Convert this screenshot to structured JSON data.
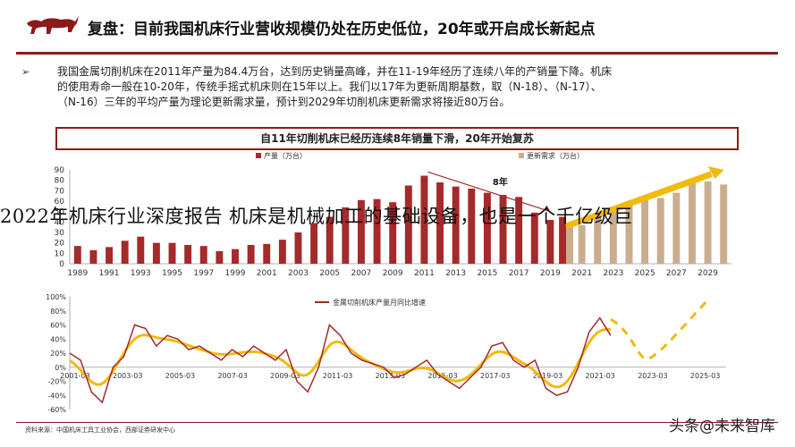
{
  "header": {
    "title": "复盘：目前我国机床行业营收规模仍处在历史低位，20年或开启成长新起点"
  },
  "bullet": {
    "lines": [
      "我国金属切削机床在2011年产量为84.4万台，达到历史销量高峰，并在11-19年经历了连续八年的产销量下降。机床",
      "的使用寿命一般在10-20年，传统手摇式机床则在15年以上。我们以17年为更新周期基数，取（N-18）、（N-17）、",
      "（N-16）三年的平均产量为理论更新需求量，预计到2029年切削机床更新需求将接近80万台。"
    ]
  },
  "overlay_text": "2022年机床行业深度报告 机床是机械加工的基础设备，也是一个千亿级巨",
  "source_text": "资料来源：中国机床工具工业协会，西部证券研发中心",
  "watermark_text": "头条@未来智库",
  "colors": {
    "accent": "#8b1a1a",
    "bar1": "#a52a2a",
    "bar2": "#c9ad8c",
    "yellow": "#f2b90f"
  },
  "chart_data": [
    {
      "type": "bar",
      "title": "自11年切削机床已经历连续8年销量下滑，20年开始复苏",
      "ylim": [
        0,
        90
      ],
      "yticks": [
        0,
        10,
        20,
        30,
        40,
        50,
        60,
        70,
        80,
        90
      ],
      "x_tick_labels": [
        "1989",
        "1991",
        "1993",
        "1995",
        "1997",
        "1999",
        "2001",
        "2003",
        "2005",
        "2007",
        "2009",
        "2011",
        "2013",
        "2015",
        "2017",
        "2019",
        "2021",
        "2023",
        "2025",
        "2027",
        "2029"
      ],
      "x_start": 1989,
      "series": [
        {
          "name": "产量（万台）",
          "years": [
            1989,
            1990,
            1991,
            1992,
            1993,
            1994,
            1995,
            1996,
            1997,
            1998,
            1999,
            2000,
            2001,
            2002,
            2003,
            2004,
            2005,
            2006,
            2007,
            2008,
            2009,
            2010,
            2011,
            2012,
            2013,
            2014,
            2015,
            2016,
            2017,
            2018,
            2019,
            2020
          ],
          "values": [
            17,
            13,
            16,
            22,
            26,
            20,
            20,
            18,
            17,
            12,
            14,
            18,
            19,
            23,
            30,
            39,
            45,
            54,
            61,
            62,
            59,
            75,
            84.4,
            78,
            74,
            72,
            68,
            66,
            64,
            49,
            42,
            45
          ]
        },
        {
          "name": "更新需求（万台）",
          "years": [
            2020,
            2021,
            2022,
            2023,
            2024,
            2025,
            2026,
            2027,
            2028,
            2029,
            2030
          ],
          "values": [
            35,
            37,
            45,
            53,
            58,
            61,
            63,
            68,
            78,
            79,
            76
          ]
        }
      ],
      "annotation": {
        "text": "8年",
        "from_year": 2011,
        "to_year": 2019
      }
    },
    {
      "type": "line",
      "y_tick_labels": [
        "100%",
        "80%",
        "60%",
        "40%",
        "20%",
        "0%",
        "-20%",
        "-40%",
        "-60%"
      ],
      "ylim": [
        -60,
        100
      ],
      "x_tick_labels": [
        "2001-03",
        "2003-03",
        "2005-03",
        "2007-03",
        "2009-03",
        "2011-03",
        "2013-03",
        "2015-03",
        "2017-03",
        "2019-03",
        "2021-03",
        "2023-03",
        "2025-03"
      ],
      "series": [
        {
          "name": "金属切削机床产量月同比增速",
          "values": [
            20,
            10,
            -35,
            -50,
            0,
            15,
            60,
            55,
            30,
            45,
            40,
            25,
            30,
            20,
            10,
            25,
            15,
            30,
            20,
            10,
            25,
            -20,
            -35,
            0,
            60,
            45,
            20,
            10,
            5,
            0,
            -15,
            -10,
            0,
            10,
            -10,
            -20,
            -30,
            -15,
            0,
            30,
            35,
            10,
            0,
            10,
            -30,
            -40,
            -35,
            0,
            50,
            70,
            45
          ]
        }
      ]
    }
  ]
}
